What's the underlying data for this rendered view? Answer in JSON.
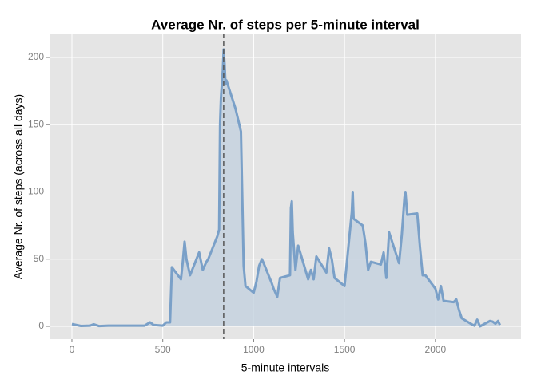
{
  "chart_data": {
    "type": "area",
    "title": "Average Nr. of steps per 5-minute interval",
    "x_label": "5-minute intervals",
    "y_label": "Average Nr. of steps (across all days)",
    "color": "#7aa0c8",
    "fill": "#c3d1de",
    "grid": true,
    "vline": 835,
    "xlim": [
      -123,
      2471
    ],
    "ylim": [
      -9.5,
      217.8
    ],
    "xticks": [
      0,
      500,
      1000,
      1500,
      2000
    ],
    "yticks": [
      0,
      50,
      100,
      150,
      200
    ],
    "x": [
      0,
      50,
      100,
      120,
      150,
      200,
      300,
      400,
      430,
      450,
      500,
      520,
      540,
      550,
      600,
      610,
      620,
      630,
      650,
      700,
      720,
      740,
      750,
      800,
      810,
      815,
      820,
      830,
      835,
      840,
      845,
      850,
      900,
      930,
      945,
      955,
      1000,
      1015,
      1030,
      1045,
      1055,
      1100,
      1110,
      1130,
      1145,
      1200,
      1205,
      1210,
      1215,
      1230,
      1245,
      1300,
      1315,
      1330,
      1345,
      1400,
      1415,
      1430,
      1445,
      1500,
      1540,
      1545,
      1550,
      1600,
      1615,
      1630,
      1645,
      1700,
      1715,
      1730,
      1745,
      1800,
      1815,
      1830,
      1835,
      1845,
      1900,
      1915,
      1930,
      1945,
      2000,
      2015,
      2030,
      2045,
      2100,
      2115,
      2130,
      2145,
      2200,
      2215,
      2230,
      2245,
      2300,
      2315,
      2330,
      2345,
      2355
    ],
    "values": [
      1.7,
      0.3,
      0.5,
      1.5,
      0.2,
      0.5,
      0.5,
      0.5,
      3,
      1,
      0.5,
      3,
      3,
      44,
      35,
      48,
      63,
      50,
      38,
      55,
      42,
      48,
      50,
      67,
      72,
      150,
      170,
      190,
      206,
      195,
      180,
      183,
      162,
      145,
      45,
      30,
      25,
      33,
      45,
      50,
      47,
      32,
      28,
      22,
      36,
      38,
      88,
      93,
      70,
      42,
      60,
      35,
      42,
      35,
      52,
      40,
      58,
      50,
      36,
      30,
      85,
      100,
      80,
      75,
      62,
      42,
      48,
      46,
      55,
      36,
      70,
      47,
      68,
      96,
      100,
      83,
      84,
      59,
      38,
      38,
      28,
      20,
      30,
      19,
      18,
      20,
      12,
      6,
      1.5,
      0.5,
      5,
      0,
      4,
      3.5,
      2,
      4,
      1
    ]
  }
}
